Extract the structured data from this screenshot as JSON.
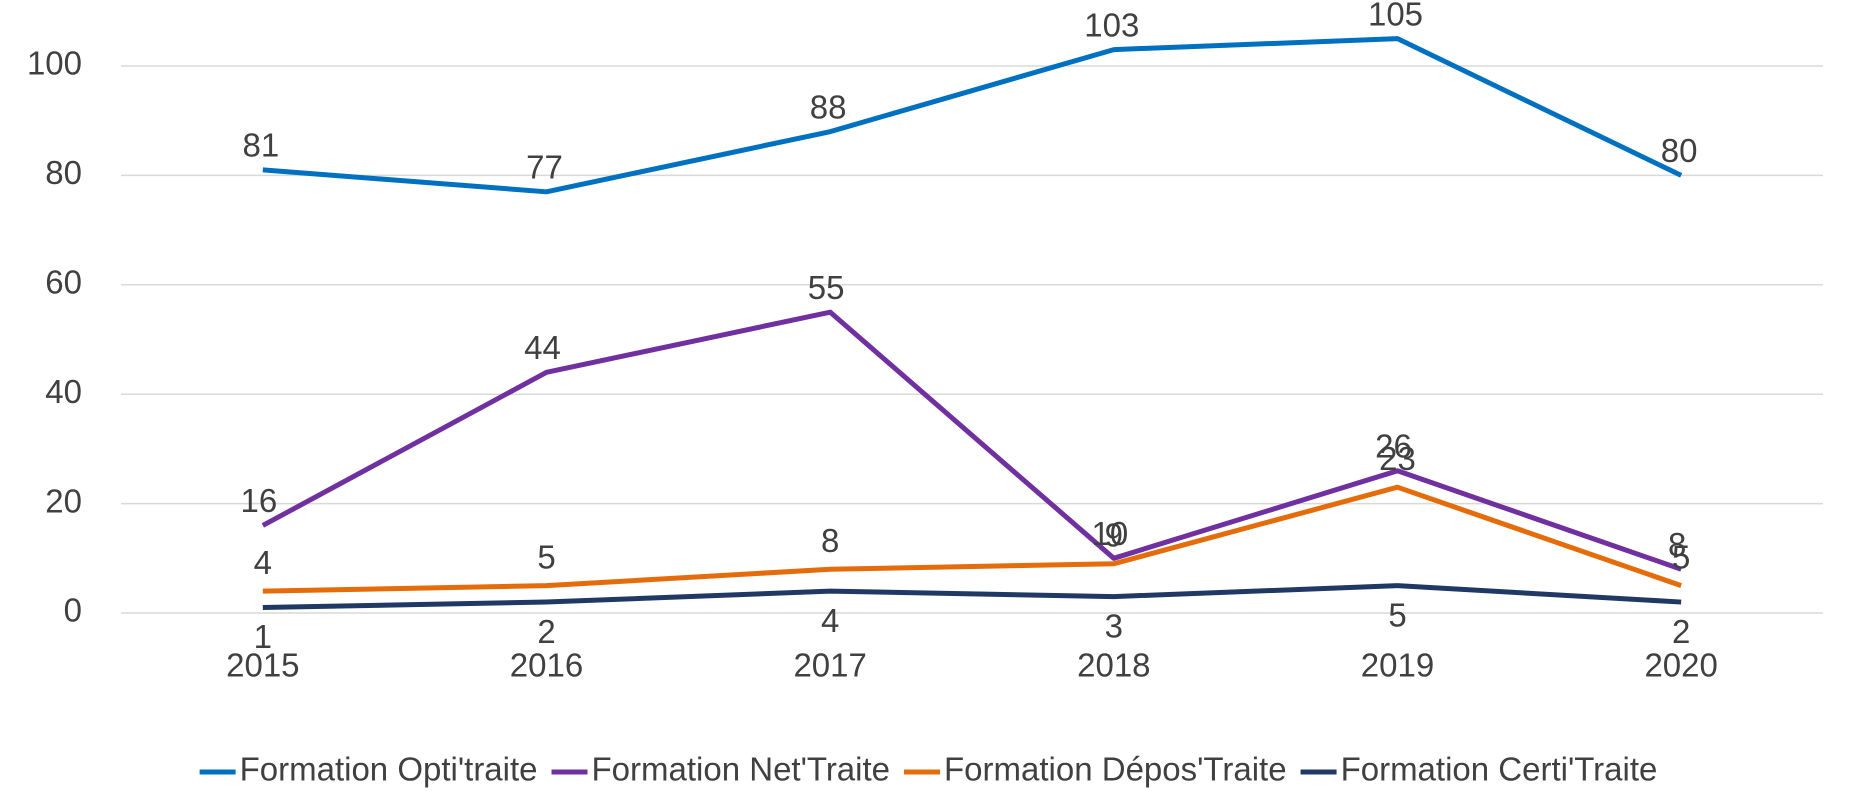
{
  "chart_data": {
    "type": "line",
    "categories": [
      "2015",
      "2016",
      "2017",
      "2018",
      "2019",
      "2020"
    ],
    "series": [
      {
        "name": "Formation Opti'traite",
        "color": "#0070c0",
        "values": [
          81,
          77,
          88,
          103,
          105,
          80
        ]
      },
      {
        "name": "Formation Net'Traite",
        "color": "#7030a0",
        "values": [
          16,
          44,
          55,
          10,
          26,
          8
        ]
      },
      {
        "name": "Formation Dépos'Traite",
        "color": "#e46c0a",
        "values": [
          4,
          5,
          8,
          9,
          23,
          5
        ]
      },
      {
        "name": "Formation Certi'Traite",
        "color": "#1f3864",
        "values": [
          1,
          2,
          4,
          3,
          5,
          2
        ]
      }
    ],
    "ylim": [
      0,
      100
    ],
    "yticks": [
      0,
      20,
      40,
      60,
      80,
      100
    ],
    "grid": true,
    "legend": "bottom"
  }
}
